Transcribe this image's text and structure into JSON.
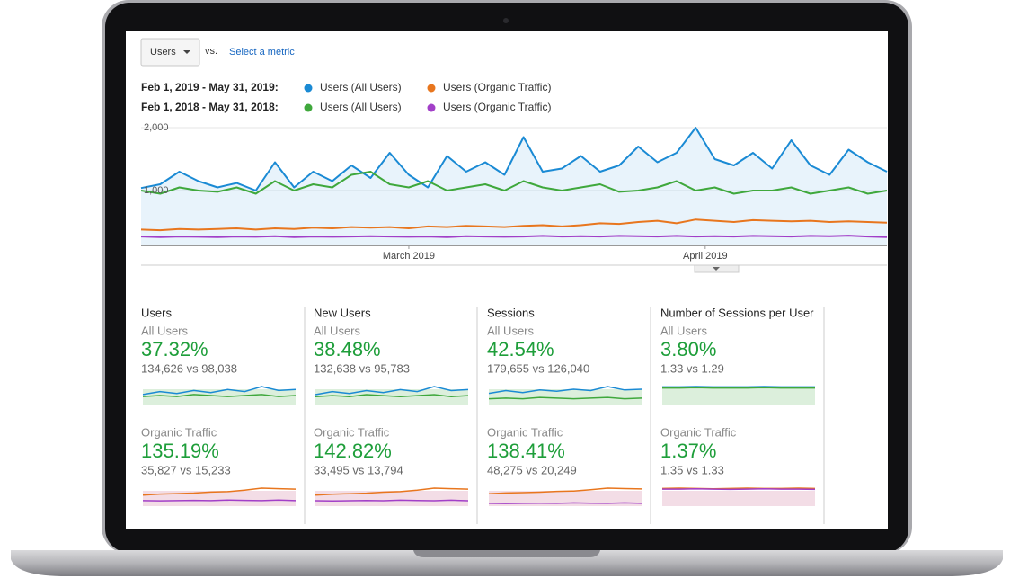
{
  "toolbar": {
    "metric": "Users",
    "vs": "vs.",
    "select": "Select a metric"
  },
  "chart_data": {
    "type": "line",
    "periods": [
      "Feb 1, 2019 - May 31, 2019:",
      "Feb 1, 2018 - May 31, 2018:"
    ],
    "series": [
      {
        "name": "Users (All Users)",
        "color": "#1a8ad4",
        "period": 0,
        "area": true,
        "values": [
          1040,
          1100,
          1300,
          1150,
          1050,
          1120,
          1000,
          1450,
          1050,
          1300,
          1150,
          1400,
          1200,
          1600,
          1250,
          1050,
          1550,
          1300,
          1450,
          1250,
          1850,
          1300,
          1350,
          1550,
          1300,
          1400,
          1700,
          1450,
          1600,
          2000,
          1500,
          1400,
          1600,
          1350,
          1800,
          1400,
          1250,
          1650,
          1450,
          1300
        ]
      },
      {
        "name": "Users (Organic Traffic)",
        "color": "#e8761e",
        "period": 0,
        "values": [
          380,
          370,
          390,
          380,
          390,
          400,
          380,
          400,
          390,
          410,
          400,
          420,
          410,
          420,
          400,
          430,
          420,
          440,
          430,
          420,
          440,
          450,
          430,
          450,
          480,
          470,
          500,
          520,
          480,
          540,
          520,
          500,
          530,
          520,
          510,
          520,
          500,
          510,
          500,
          490
        ]
      },
      {
        "name": "Users (All Users)",
        "color": "#3fa83c",
        "period": 1,
        "values": [
          1000,
          950,
          1050,
          1000,
          980,
          1050,
          950,
          1150,
          1000,
          1100,
          1050,
          1250,
          1300,
          1100,
          1050,
          1150,
          1000,
          1050,
          1100,
          1000,
          1150,
          1050,
          1000,
          1050,
          1100,
          980,
          1000,
          1050,
          1150,
          1000,
          1050,
          950,
          1000,
          1000,
          1050,
          950,
          1000,
          1050,
          950,
          1000
        ]
      },
      {
        "name": "Users (Organic Traffic)",
        "color": "#a23fc8",
        "period": 1,
        "values": [
          270,
          260,
          270,
          265,
          260,
          270,
          265,
          275,
          260,
          270,
          265,
          270,
          275,
          270,
          265,
          270,
          260,
          275,
          270,
          265,
          270,
          280,
          270,
          275,
          270,
          280,
          275,
          270,
          280,
          270,
          275,
          270,
          280,
          275,
          270,
          280,
          275,
          285,
          270,
          260
        ]
      }
    ],
    "ylim": [
      0,
      2100
    ],
    "yticks": [
      {
        "value": 1000,
        "label": "1,000"
      },
      {
        "value": 2000,
        "label": "2,000"
      }
    ],
    "xlim": [
      0,
      39
    ],
    "xticks": [
      {
        "value": 14,
        "label": "March 2019"
      },
      {
        "value": 29.5,
        "label": "April 2019"
      }
    ],
    "grid": true
  },
  "metrics": [
    {
      "title": "Users",
      "groups": [
        {
          "label": "All Users",
          "change": "37.32%",
          "counts": "134,626 vs 98,038",
          "spark": [
            {
              "color": "#1a8ad4",
              "values": [
                1100,
                1250,
                1150,
                1300,
                1200,
                1350,
                1250,
                1500,
                1300,
                1350
              ]
            },
            {
              "color": "#3fa83c",
              "values": [
                1000,
                1050,
                1000,
                1100,
                1050,
                1000,
                1050,
                1100,
                1000,
                1050
              ]
            }
          ]
        },
        {
          "label": "Organic Traffic",
          "change": "135.19%",
          "counts": "35,827 vs 15,233",
          "spark": [
            {
              "color": "#e8761e",
              "values": [
                380,
                400,
                410,
                420,
                440,
                450,
                480,
                520,
                510,
                500
              ]
            },
            {
              "color": "#a23fc8",
              "values": [
                270,
                265,
                270,
                275,
                270,
                280,
                275,
                270,
                280,
                270
              ]
            }
          ]
        }
      ]
    },
    {
      "title": "New Users",
      "groups": [
        {
          "label": "All Users",
          "change": "38.48%",
          "counts": "132,638 vs 95,783",
          "spark": [
            {
              "color": "#1a8ad4",
              "values": [
                1080,
                1230,
                1130,
                1280,
                1180,
                1330,
                1230,
                1480,
                1280,
                1330
              ]
            },
            {
              "color": "#3fa83c",
              "values": [
                980,
                1030,
                980,
                1080,
                1030,
                980,
                1030,
                1080,
                980,
                1030
              ]
            }
          ]
        },
        {
          "label": "Organic Traffic",
          "change": "142.82%",
          "counts": "33,495 vs 13,794",
          "spark": [
            {
              "color": "#e8761e",
              "values": [
                370,
                390,
                400,
                410,
                430,
                440,
                470,
                510,
                500,
                490
              ]
            },
            {
              "color": "#a23fc8",
              "values": [
                260,
                255,
                260,
                265,
                260,
                270,
                265,
                260,
                270,
                260
              ]
            }
          ]
        }
      ]
    },
    {
      "title": "Sessions",
      "groups": [
        {
          "label": "All Users",
          "change": "42.54%",
          "counts": "179,655 vs 126,040",
          "spark": [
            {
              "color": "#1a8ad4",
              "values": [
                1450,
                1650,
                1500,
                1700,
                1600,
                1750,
                1650,
                1950,
                1700,
                1750
              ]
            },
            {
              "color": "#3fa83c",
              "values": [
                1050,
                1100,
                1050,
                1150,
                1100,
                1050,
                1100,
                1150,
                1050,
                1100
              ]
            }
          ]
        },
        {
          "label": "Organic Traffic",
          "change": "138.41%",
          "counts": "48,275 vs 20,249",
          "spark": [
            {
              "color": "#e8761e",
              "values": [
                400,
                420,
                430,
                440,
                460,
                470,
                500,
                540,
                530,
                520
              ]
            },
            {
              "color": "#a23fc8",
              "values": [
                165,
                160,
                165,
                170,
                165,
                175,
                170,
                165,
                175,
                165
              ]
            }
          ]
        }
      ]
    },
    {
      "title": "Number of Sessions per User",
      "groups": [
        {
          "label": "All Users",
          "change": "3.80%",
          "counts": "1.33 vs 1.29",
          "spark": [
            {
              "color": "#1a8ad4",
              "values": [
                1.33,
                1.33,
                1.34,
                1.33,
                1.33,
                1.33,
                1.34,
                1.33,
                1.33,
                1.33
              ]
            },
            {
              "color": "#3fa83c",
              "values": [
                1.29,
                1.29,
                1.3,
                1.29,
                1.29,
                1.29,
                1.3,
                1.29,
                1.29,
                1.29
              ]
            }
          ]
        },
        {
          "label": "Organic Traffic",
          "change": "1.37%",
          "counts": "1.35 vs 1.33",
          "spark": [
            {
              "color": "#e8761e",
              "values": [
                1.35,
                1.36,
                1.35,
                1.34,
                1.35,
                1.36,
                1.35,
                1.35,
                1.36,
                1.35
              ]
            },
            {
              "color": "#a23fc8",
              "values": [
                1.33,
                1.33,
                1.34,
                1.33,
                1.32,
                1.33,
                1.34,
                1.33,
                1.33,
                1.32
              ]
            }
          ]
        }
      ]
    }
  ]
}
